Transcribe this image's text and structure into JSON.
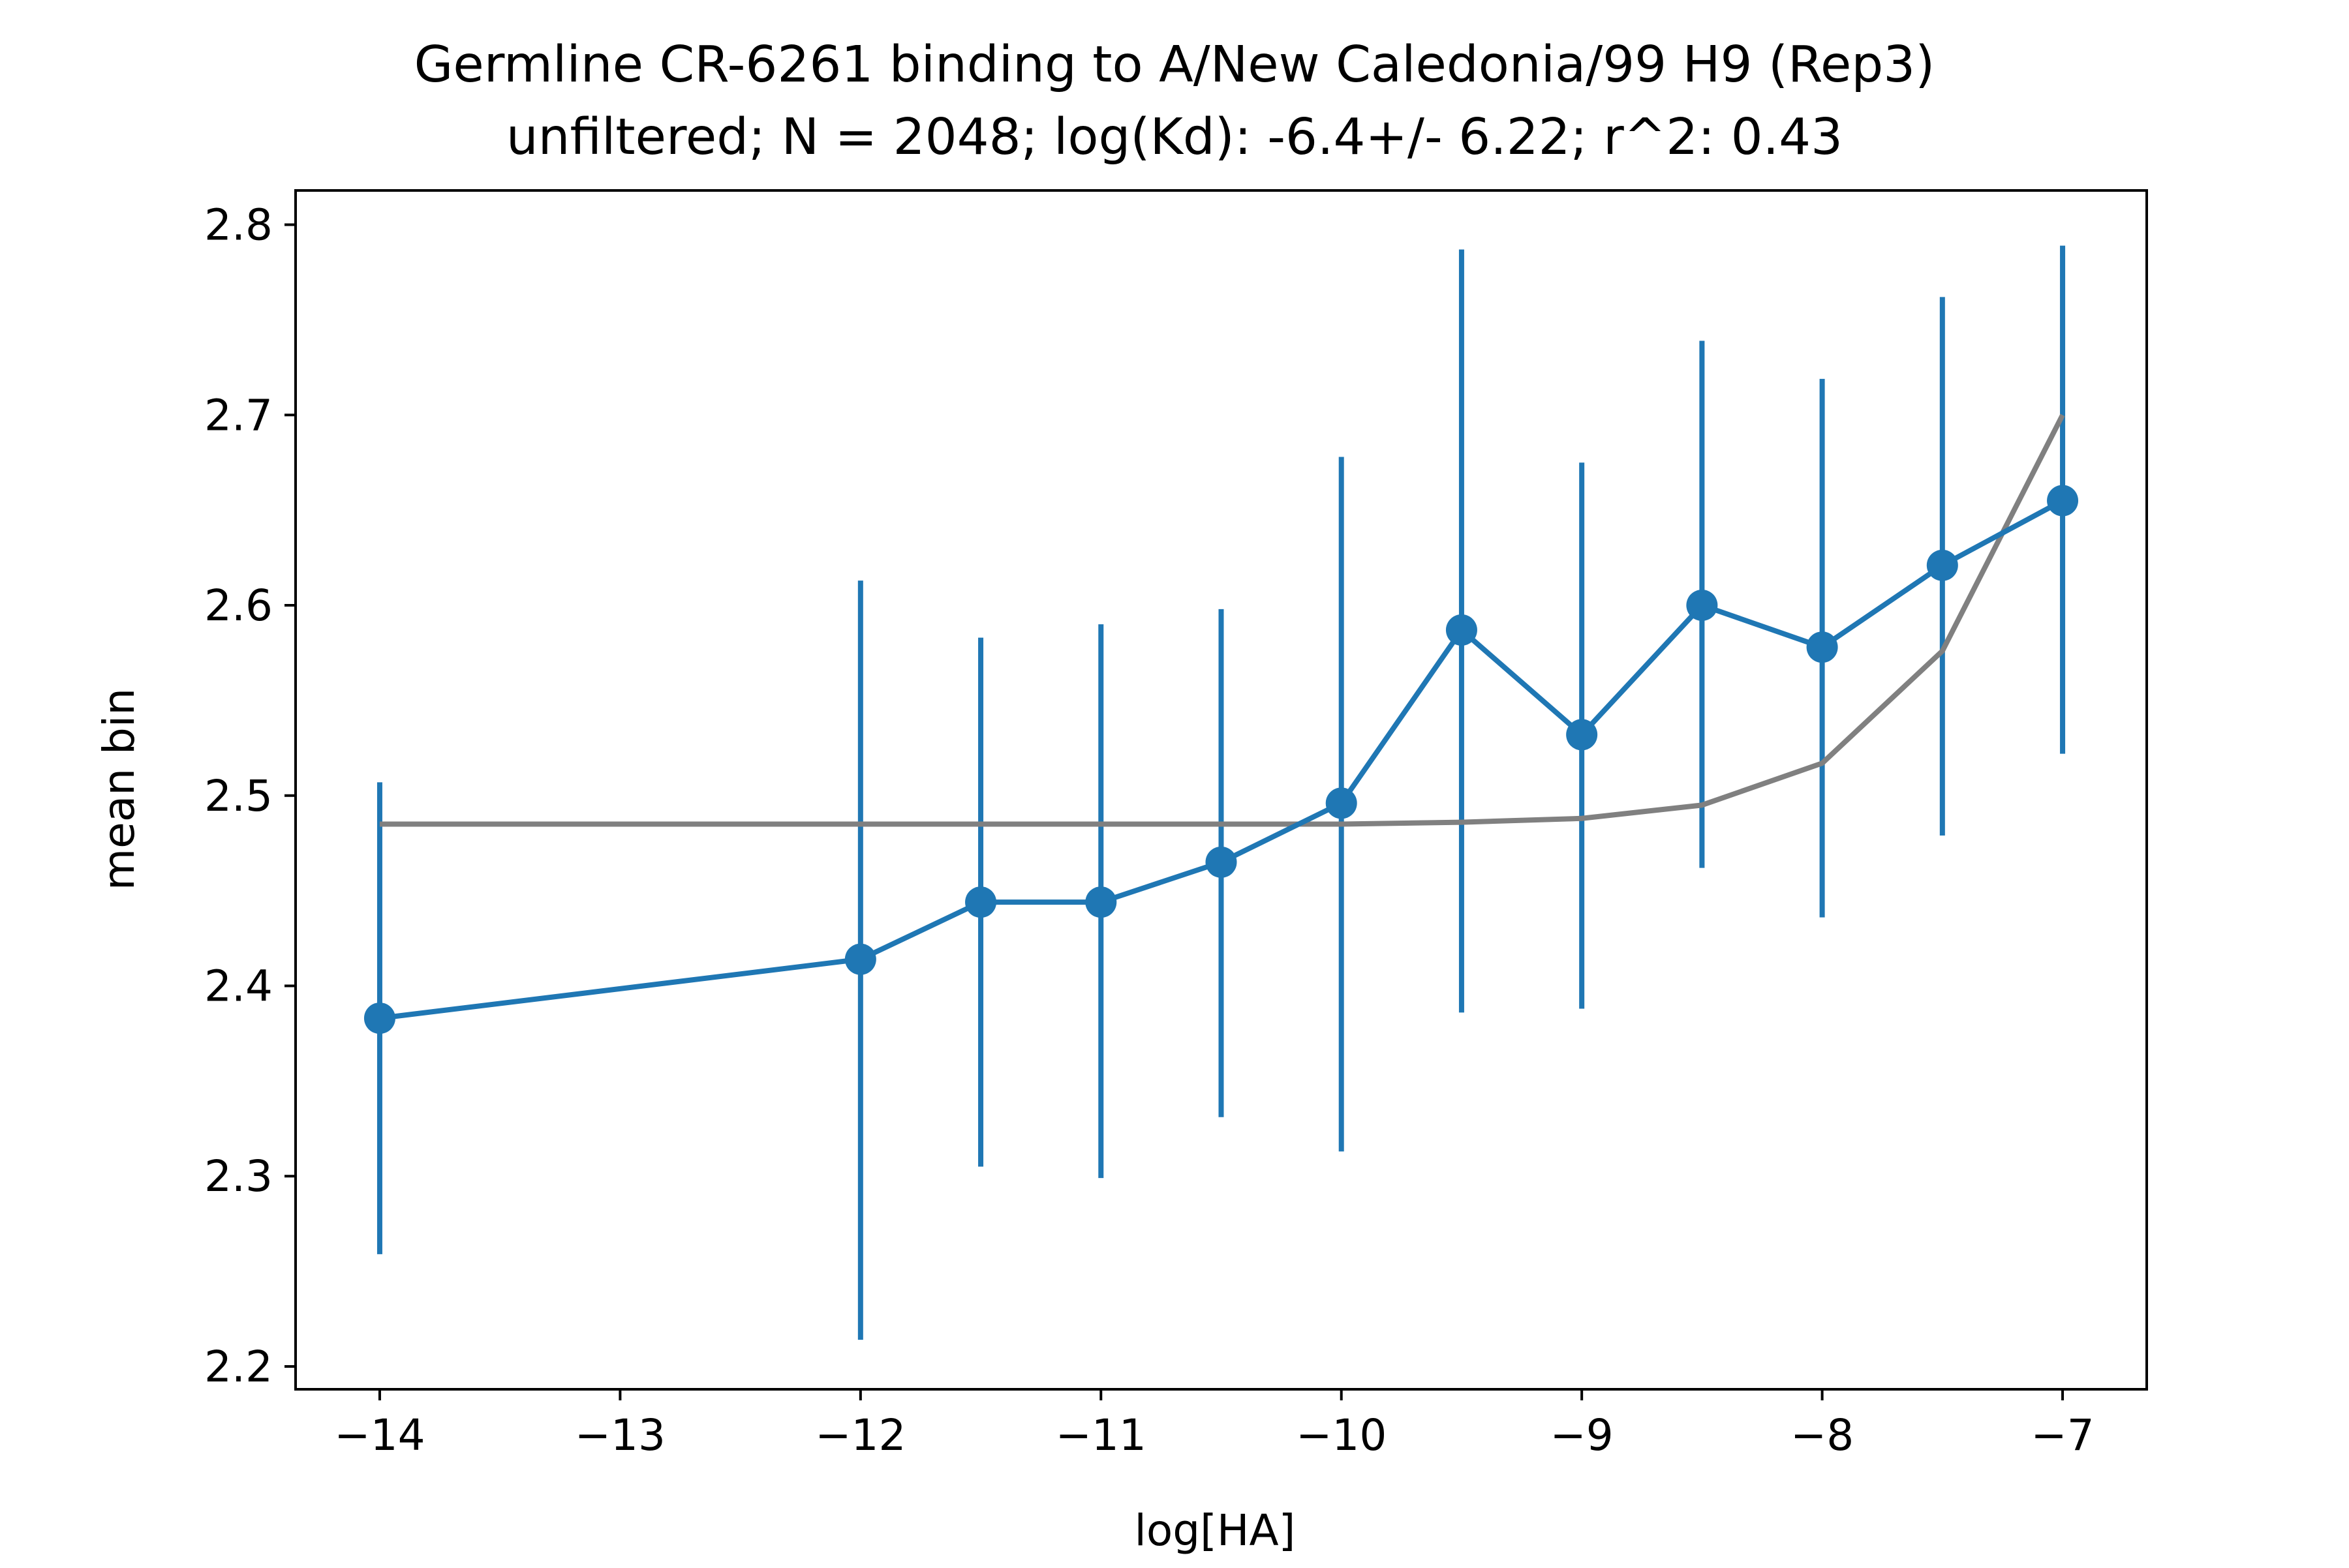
{
  "chart_data": {
    "type": "line",
    "title": "Germline CR-6261 binding to A/New Caledonia/99 H9 (Rep3)",
    "subtitle": "unfiltered; N = 2048; log(Kd): -6.4+/- 6.22; r^2: 0.43",
    "xlabel": "log[HA]",
    "ylabel": "mean bin",
    "xlim": [
      -14.35,
      -6.65
    ],
    "ylim": [
      2.188,
      2.818
    ],
    "xticks": [
      -14,
      -13,
      -12,
      -11,
      -10,
      -9,
      -8,
      -7
    ],
    "xtick_labels": [
      "−14",
      "−13",
      "−12",
      "−11",
      "−10",
      "−9",
      "−8",
      "−7"
    ],
    "yticks": [
      2.2,
      2.3,
      2.4,
      2.5,
      2.6,
      2.7,
      2.8
    ],
    "ytick_labels": [
      "2.2",
      "2.3",
      "2.4",
      "2.5",
      "2.6",
      "2.7",
      "2.8"
    ],
    "grid": false,
    "series": [
      {
        "kind": "errorbar-line",
        "color": "#1f77b4",
        "x": [
          -14,
          -12,
          -11.5,
          -11,
          -10.5,
          -10,
          -9.5,
          -9,
          -8.5,
          -8,
          -7.5,
          -7
        ],
        "y": [
          2.383,
          2.414,
          2.444,
          2.444,
          2.465,
          2.496,
          2.587,
          2.532,
          2.6,
          2.578,
          2.621,
          2.655
        ],
        "err_lower": [
          2.259,
          2.214,
          2.305,
          2.299,
          2.331,
          2.313,
          2.386,
          2.388,
          2.462,
          2.436,
          2.479,
          2.522
        ],
        "err_upper": [
          2.507,
          2.613,
          2.583,
          2.59,
          2.598,
          2.678,
          2.787,
          2.675,
          2.739,
          2.719,
          2.762,
          2.789
        ]
      },
      {
        "kind": "fit-line",
        "color": "#808080",
        "x": [
          -14,
          -12,
          -11.5,
          -11,
          -10.5,
          -10,
          -9.5,
          -9,
          -8.5,
          -8,
          -7.5,
          -7
        ],
        "y": [
          2.485,
          2.485,
          2.485,
          2.485,
          2.485,
          2.485,
          2.486,
          2.488,
          2.495,
          2.517,
          2.576,
          2.7
        ]
      }
    ]
  }
}
